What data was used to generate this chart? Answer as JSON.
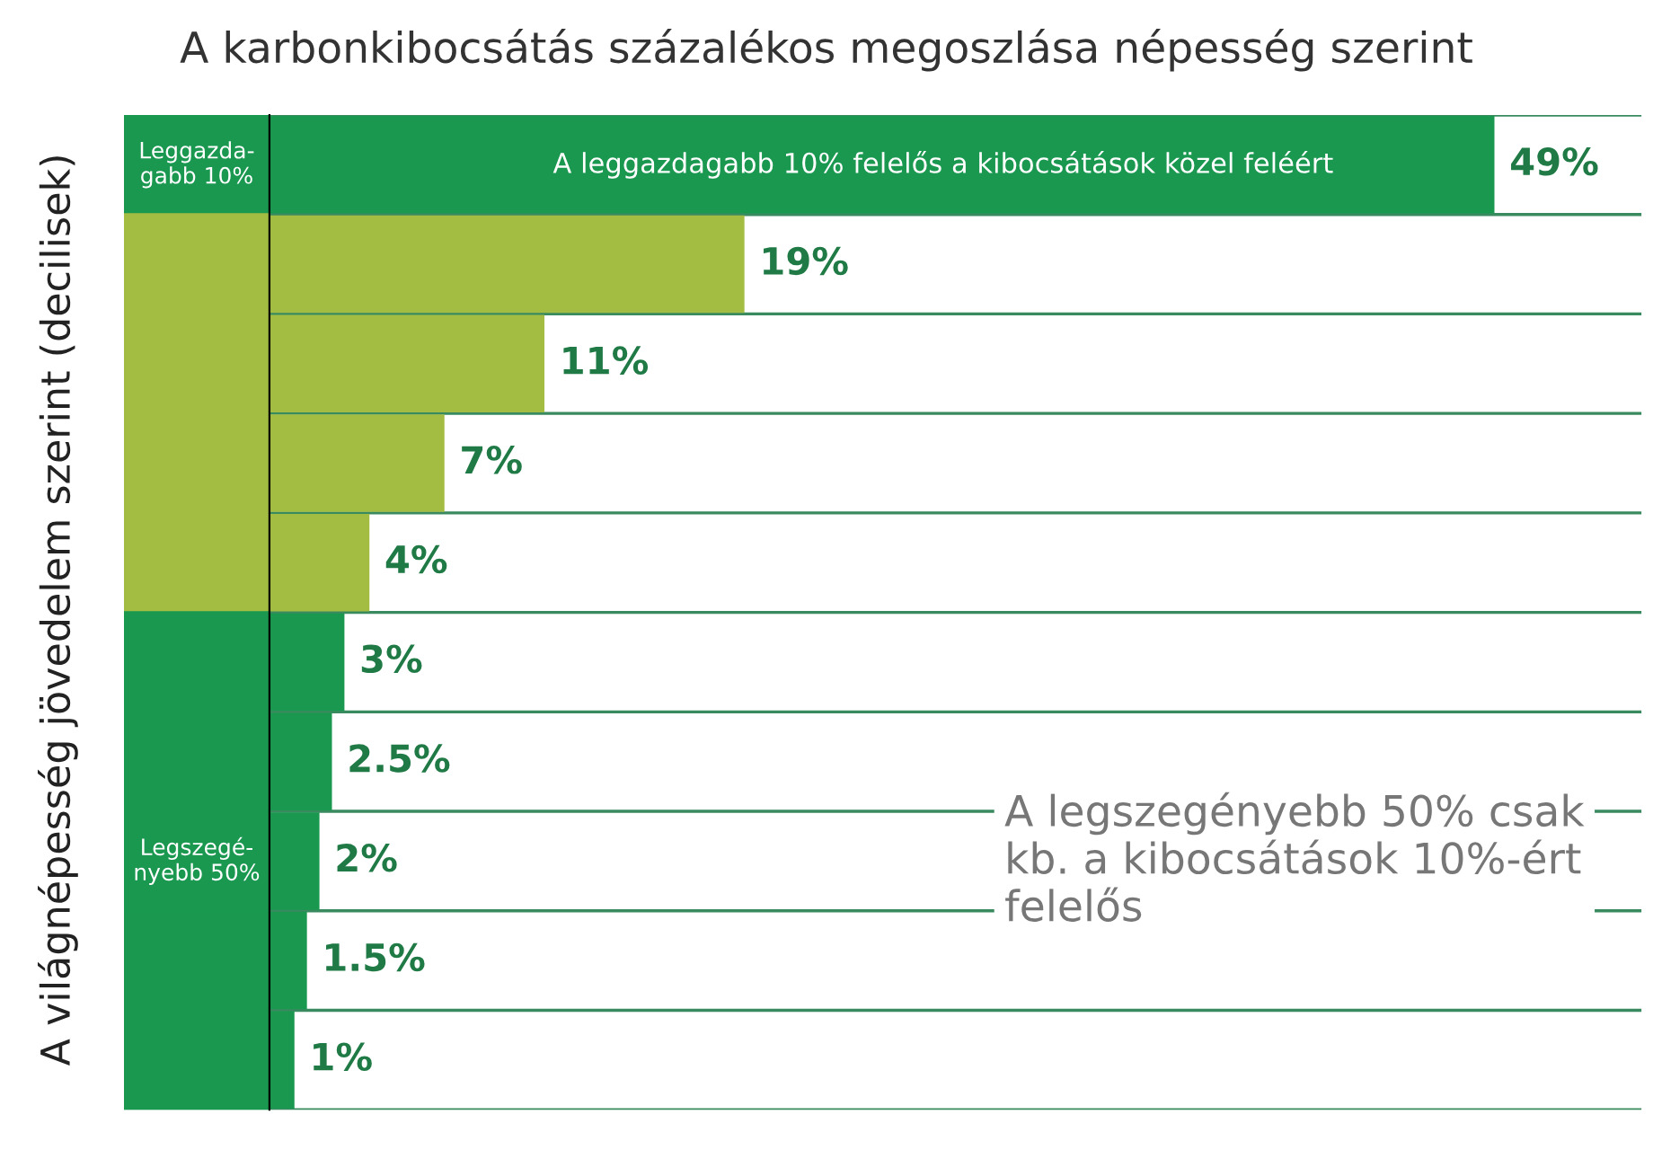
{
  "chart_data": {
    "type": "bar",
    "orientation": "horizontal",
    "title": "A karbonkibocsátás százalékos megoszlása népesség szerint",
    "ylabel": "A világnépesség jövedelem szerint (decilisek)",
    "categories": [
      null,
      null,
      null,
      null,
      null,
      null,
      null,
      null,
      null,
      null
    ],
    "values": [
      49,
      19,
      11,
      7,
      4,
      3,
      2.5,
      2,
      1.5,
      1
    ],
    "value_labels": [
      "49%",
      "19%",
      "11%",
      "7%",
      "4%",
      "3%",
      "2.5%",
      "2%",
      "1.5%",
      "1%"
    ],
    "colors": [
      "#1a9850",
      "#a3bd42",
      "#a3bd42",
      "#a3bd42",
      "#a3bd42",
      "#1a9850",
      "#1a9850",
      "#1a9850",
      "#1a9850",
      "#1a9850"
    ],
    "annotations": [
      "Leggazda-\ngabb 10%",
      "Legszegé-\nnyebb 50%",
      "A leggazdagabb 10% felelős a kibocsátások közel feléért",
      "A legszegényebb 50% csak kb. a kibocsátások 10%-ért felelős"
    ],
    "grid": false,
    "legend": false
  }
}
